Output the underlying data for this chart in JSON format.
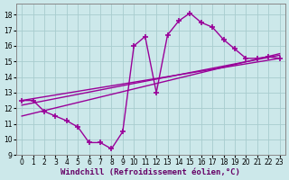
{
  "background_color": "#cce8ea",
  "grid_color": "#a8ccce",
  "line_color": "#990099",
  "marker": "+",
  "marker_size": 4,
  "marker_ew": 1.2,
  "line_width": 1.0,
  "xlabel": "Windchill (Refroidissement éolien,°C)",
  "xlabel_fontsize": 6.5,
  "xlim": [
    -0.5,
    23.5
  ],
  "ylim": [
    9.0,
    18.7
  ],
  "xticks": [
    0,
    1,
    2,
    3,
    4,
    5,
    6,
    7,
    8,
    9,
    10,
    11,
    12,
    13,
    14,
    15,
    16,
    17,
    18,
    19,
    20,
    21,
    22,
    23
  ],
  "yticks": [
    9,
    10,
    11,
    12,
    13,
    14,
    15,
    16,
    17,
    18
  ],
  "tick_fontsize": 5.5,
  "curve1_x": [
    0,
    1,
    2,
    3,
    4,
    5,
    6,
    7,
    8,
    9,
    10,
    11,
    12,
    13,
    14,
    15,
    16,
    17,
    18,
    19,
    20,
    21,
    22,
    23
  ],
  "curve1_y": [
    12.5,
    12.5,
    11.8,
    11.5,
    11.2,
    10.8,
    9.8,
    9.8,
    9.4,
    10.5,
    16.0,
    16.6,
    13.0,
    16.7,
    17.6,
    18.1,
    17.5,
    17.2,
    16.4,
    15.8,
    15.2,
    15.2,
    15.3,
    15.2
  ],
  "line2_x": [
    0,
    23
  ],
  "line2_y": [
    12.5,
    15.2
  ],
  "line3_x": [
    0,
    23
  ],
  "line3_y": [
    12.2,
    15.4
  ],
  "line4_x": [
    0,
    23
  ],
  "line4_y": [
    11.5,
    15.5
  ]
}
